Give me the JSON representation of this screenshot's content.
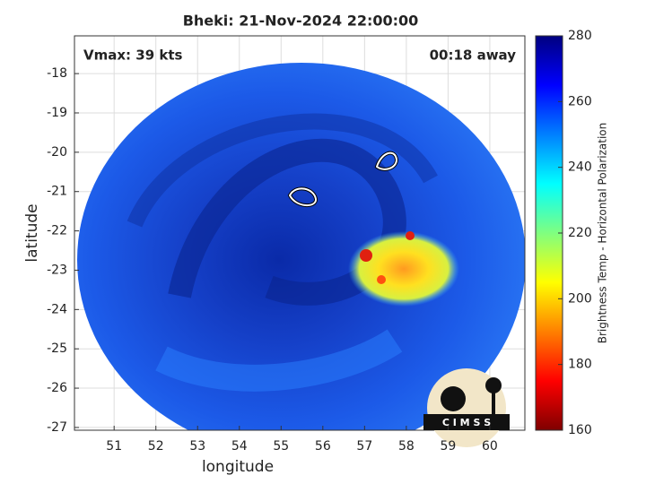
{
  "title": "Bheki: 21-Nov-2024 22:00:00",
  "annotations": {
    "vmax": "Vmax: 39 kts",
    "away": "00:18 away"
  },
  "x_axis": {
    "label": "longitude",
    "lim": [
      50.05,
      60.84
    ],
    "ticks": [
      51,
      52,
      53,
      54,
      55,
      56,
      57,
      58,
      59,
      60
    ]
  },
  "y_axis": {
    "label": "latitude",
    "lim": [
      -27.07,
      -17.04
    ],
    "ticks": [
      -27,
      -26,
      -25,
      -24,
      -23,
      -22,
      -21,
      -20,
      -19,
      -18
    ]
  },
  "grid": true,
  "colorbar": {
    "label": "Brightness Temp - Horizontal Polarization",
    "lim": [
      160,
      280
    ],
    "ticks": [
      160,
      180,
      200,
      220,
      240,
      260,
      280
    ],
    "colormap": "jet_r"
  },
  "logo": "C I M S S"
}
